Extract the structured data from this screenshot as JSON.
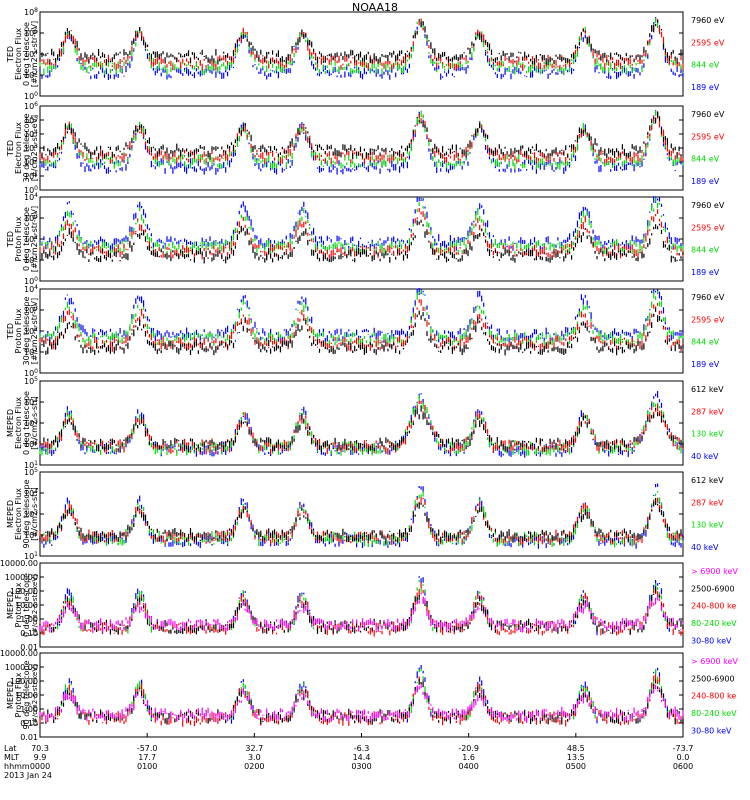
{
  "title": "NOAA18",
  "colors": {
    "blue": "#0000ff",
    "red": "#ff0000",
    "green": "#00dd00",
    "black": "#000000",
    "magenta": "#ff00ff"
  },
  "panels": [
    {
      "ylabel": [
        "TED",
        "Electron Flux",
        "0 deg telescope",
        "[#/cm2-s-str-eV]"
      ],
      "yticks": [
        "10^0",
        "10^2",
        "10^4",
        "10^6",
        "10^8"
      ],
      "legend": [
        {
          "text": "7960 eV",
          "color": "black"
        },
        {
          "text": "2595 eV",
          "color": "red"
        },
        {
          "text": "844 eV",
          "color": "green"
        },
        {
          "text": "189 eV",
          "color": "blue"
        }
      ]
    },
    {
      "ylabel": [
        "TED",
        "Electron Flux",
        "30 deg telescope",
        "[#/cm2-s-str-eV]"
      ],
      "yticks": [
        "10^0",
        "10^1",
        "10^2",
        "10^3",
        "10^4",
        "10^5",
        "10^6"
      ],
      "legend": [
        {
          "text": "7960 eV",
          "color": "black"
        },
        {
          "text": "2595 eV",
          "color": "red"
        },
        {
          "text": "844 eV",
          "color": "green"
        },
        {
          "text": "189 eV",
          "color": "blue"
        }
      ]
    },
    {
      "ylabel": [
        "TED",
        "Proton Flux",
        "0 deg telescope",
        "[#/cm2-s-str-eV]"
      ],
      "yticks": [
        "10^0",
        "10^1",
        "10^2",
        "10^3",
        "10^4"
      ],
      "legend": [
        {
          "text": "7960 eV",
          "color": "black"
        },
        {
          "text": "2595 eV",
          "color": "red"
        },
        {
          "text": "844 eV",
          "color": "green"
        },
        {
          "text": "189 eV",
          "color": "blue"
        }
      ]
    },
    {
      "ylabel": [
        "TED",
        "Proton Flux",
        "30 deg telescope",
        "[#/cm2-s-str-eV]"
      ],
      "yticks": [
        "10^0",
        "10^1",
        "10^2",
        "10^3",
        "10^4"
      ],
      "legend": [
        {
          "text": "7960 eV",
          "color": "black"
        },
        {
          "text": "2595 eV",
          "color": "red"
        },
        {
          "text": "844 eV",
          "color": "green"
        },
        {
          "text": "189 eV",
          "color": "blue"
        }
      ]
    },
    {
      "ylabel": [
        "MEPED",
        "Electron Flux",
        "0 deg telescope",
        "[#/cm2-s-str]"
      ],
      "yticks": [
        "10^1",
        "10^2",
        "10^3",
        "10^4",
        "10^5"
      ],
      "legend": [
        {
          "text": "612 keV",
          "color": "black"
        },
        {
          "text": "287 keV",
          "color": "red"
        },
        {
          "text": "130 keV",
          "color": "green"
        },
        {
          "text": "40 keV",
          "color": "blue"
        }
      ]
    },
    {
      "ylabel": [
        "MEPED",
        "Electron Flux",
        "90 deg telescope",
        "[#/cm2-s-str]"
      ],
      "yticks": [
        "10^1",
        "10^2",
        "10^3",
        "10^4",
        "10^5"
      ],
      "legend": [
        {
          "text": "612 keV",
          "color": "black"
        },
        {
          "text": "287 keV",
          "color": "red"
        },
        {
          "text": "130 keV",
          "color": "green"
        },
        {
          "text": "40 keV",
          "color": "blue"
        }
      ]
    },
    {
      "ylabel": [
        "MEPED",
        "Proton Flux",
        "0 deg telescope",
        "[#/cm2-s-str-keV]"
      ],
      "yticks": [
        "0.01",
        "0.10",
        "1.00",
        "10.00",
        "100.00",
        "1000.00",
        "10000.00"
      ],
      "legend": [
        {
          "text": "> 6900 keV",
          "color": "magenta"
        },
        {
          "text": "2500-6900",
          "color": "black"
        },
        {
          "text": "240-800 ke",
          "color": "red"
        },
        {
          "text": "80-240 keV",
          "color": "green"
        },
        {
          "text": "30-80 keV",
          "color": "blue"
        }
      ]
    },
    {
      "ylabel": [
        "MEPED",
        "Proton Flux",
        "90 deg telescope",
        "[#/cm2-s-str-keV]"
      ],
      "yticks": [
        "0.01",
        "0.10",
        "1.00",
        "10.00",
        "100.00",
        "1000.00",
        "10000.00"
      ],
      "legend": [
        {
          "text": "> 6900 keV",
          "color": "magenta"
        },
        {
          "text": "2500-6900",
          "color": "black"
        },
        {
          "text": "240-800 ke",
          "color": "red"
        },
        {
          "text": "80-240 keV",
          "color": "green"
        },
        {
          "text": "30-80 keV",
          "color": "blue"
        }
      ]
    }
  ],
  "xaxis": {
    "row_labels": [
      "Lat",
      "MLT",
      "hhmm"
    ],
    "date": "2013 Jan 24",
    "ticks": [
      {
        "lat": "70.3",
        "mlt": "9.9",
        "hhmm": "0000"
      },
      {
        "lat": "-57.0",
        "mlt": "17.7",
        "hhmm": "0100"
      },
      {
        "lat": "32.7",
        "mlt": "3.0",
        "hhmm": "0200"
      },
      {
        "lat": "-6.3",
        "mlt": "14.4",
        "hhmm": "0300"
      },
      {
        "lat": "-20.9",
        "mlt": "1.6",
        "hhmm": "0400"
      },
      {
        "lat": "48.5",
        "mlt": "13.5",
        "hhmm": "0500"
      },
      {
        "lat": "-73.7",
        "mlt": "0.0",
        "hhmm": "0600"
      }
    ]
  },
  "chart_data": {
    "type": "line",
    "title": "NOAA18",
    "x_range_hhmm": [
      "0000",
      "0600"
    ],
    "time_units": "hours UT",
    "pass_centers_hours": [
      0.27,
      0.93,
      1.9,
      2.45,
      3.55,
      4.1,
      5.08,
      5.75
    ],
    "yscale": "log",
    "grid": false,
    "legend_placement": "right of each panel"
  }
}
